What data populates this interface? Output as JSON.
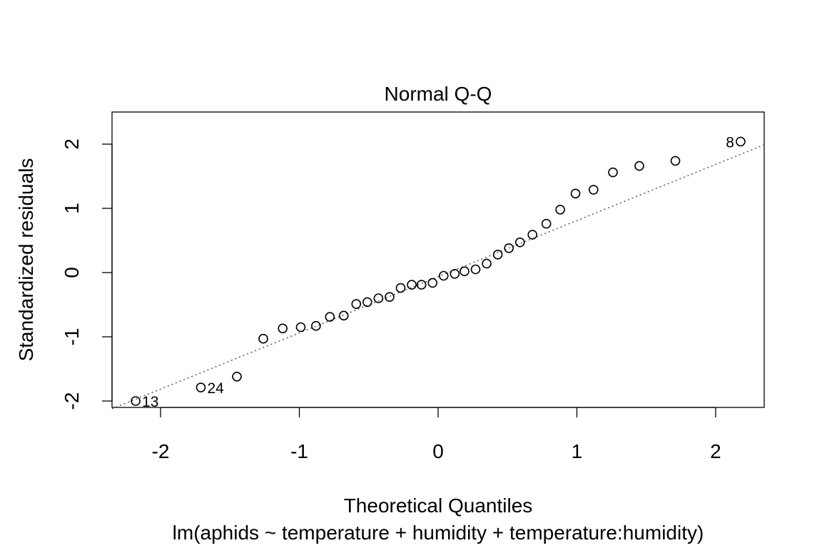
{
  "chart_data": {
    "type": "scatter",
    "title": "Normal Q-Q",
    "xlabel": "Theoretical Quantiles",
    "ylabel": "Standardized residuals",
    "caption": "lm(aphids ~ temperature + humidity + temperature:humidity)",
    "xlim": [
      -2.35,
      2.35
    ],
    "ylim": [
      -2.1,
      2.5
    ],
    "xticks": [
      -2,
      -1,
      0,
      1,
      2
    ],
    "yticks": [
      -2,
      -1,
      0,
      1,
      2
    ],
    "xtick_labels": [
      "-2",
      "-1",
      "0",
      "1",
      "2"
    ],
    "ytick_labels": [
      "-2",
      "-1",
      "0",
      "1",
      "2"
    ],
    "grid": false,
    "reference_line": {
      "style": "dotted",
      "color": "#555555",
      "x": [
        -2.35,
        2.35
      ],
      "y": [
        -2.12,
        1.99
      ]
    },
    "series": [
      {
        "x": [
          -2.18,
          -1.71,
          -1.45,
          -1.26,
          -1.12,
          -0.99,
          -0.88,
          -0.78,
          -0.68,
          -0.59,
          -0.51,
          -0.43,
          -0.35,
          -0.27,
          -0.19,
          -0.12,
          -0.04,
          0.04,
          0.12,
          0.19,
          0.27,
          0.35,
          0.43,
          0.51,
          0.59,
          0.68,
          0.78,
          0.88,
          0.99,
          1.12,
          1.26,
          1.45,
          1.71,
          2.18
        ],
        "y": [
          -2.0,
          -1.79,
          -1.62,
          -1.03,
          -0.87,
          -0.85,
          -0.83,
          -0.69,
          -0.67,
          -0.49,
          -0.46,
          -0.4,
          -0.38,
          -0.24,
          -0.19,
          -0.19,
          -0.16,
          -0.05,
          -0.02,
          0.02,
          0.05,
          0.14,
          0.28,
          0.38,
          0.47,
          0.59,
          0.76,
          0.98,
          1.23,
          1.29,
          1.56,
          1.66,
          1.74,
          2.04
        ]
      }
    ],
    "point_labels": [
      {
        "index": 0,
        "text": "13",
        "side": "right"
      },
      {
        "index": 1,
        "text": "24",
        "side": "right"
      },
      {
        "index": 33,
        "text": "8",
        "side": "left"
      }
    ]
  }
}
